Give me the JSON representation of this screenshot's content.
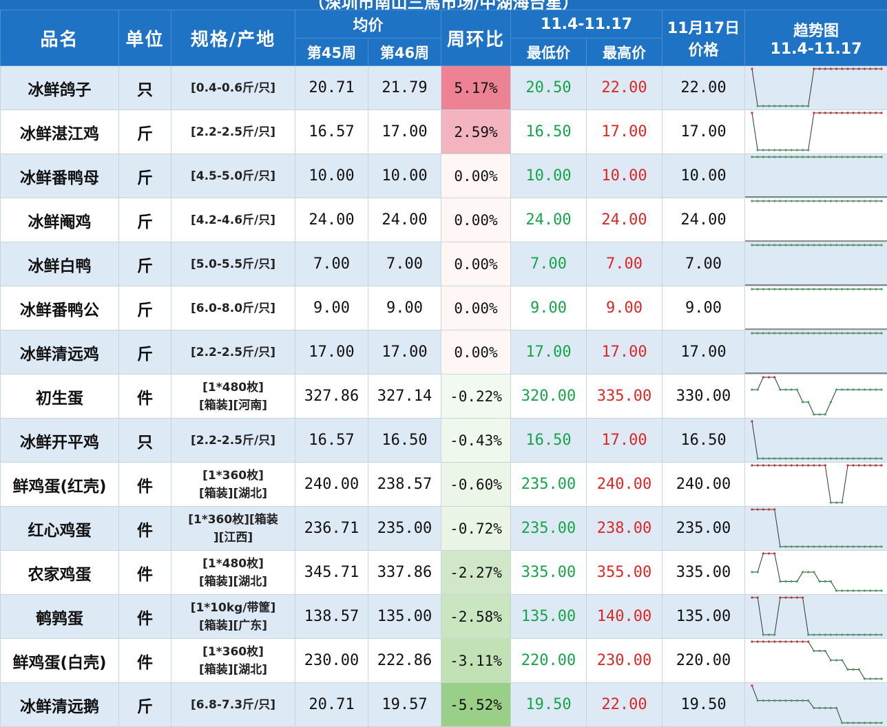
{
  "title": "（深圳市南山三馬市场/中湖海台星）",
  "header": {
    "name": "品名",
    "unit": "单位",
    "spec": "规格/产地",
    "avg": "均价",
    "week45": "第45周",
    "week46": "第46周",
    "wow": "周环比",
    "range": "11.4-11.17",
    "low": "最低价",
    "high": "最高价",
    "price_line1": "11月17日",
    "price_line2": "价格",
    "trend_line1": "趋势图",
    "trend_line2": "11.4-11.17"
  },
  "colors": {
    "header_bg": "#1f73c4",
    "low_text": "#16a34a",
    "high_text": "#dc2626",
    "positive_cell": "#f4b6bf",
    "negative_cell": "#b9dfae"
  },
  "rows": [
    {
      "name": "冰鲜鸽子",
      "unit": "只",
      "spec_l1": "[0.4-0.6斤/只]",
      "spec_l2": "",
      "w45": "20.71",
      "w46": "21.79",
      "pct": "5.17%",
      "pct_value": 5.17,
      "low": "20.50",
      "high": "22.00",
      "price": "22.00",
      "trend": [
        22,
        20.5,
        20.5,
        20.5,
        20.5,
        20.5,
        20.5,
        20.5,
        20.5,
        20.5,
        20.5,
        22,
        22,
        22,
        22,
        22,
        22,
        22,
        22,
        22,
        22,
        22,
        22,
        22
      ]
    },
    {
      "name": "冰鲜湛江鸡",
      "unit": "斤",
      "spec_l1": "[2.2-2.5斤/只]",
      "spec_l2": "",
      "w45": "16.57",
      "w46": "17.00",
      "pct": "2.59%",
      "pct_value": 2.59,
      "low": "16.50",
      "high": "17.00",
      "price": "17.00",
      "trend": [
        17,
        16.5,
        16.5,
        16.5,
        16.5,
        16.5,
        16.5,
        16.5,
        16.5,
        16.5,
        16.5,
        17,
        17,
        17,
        17,
        17,
        17,
        17,
        17,
        17,
        17,
        17,
        17,
        17
      ]
    },
    {
      "name": "冰鲜番鸭母",
      "unit": "斤",
      "spec_l1": "[4.5-5.0斤/只]",
      "spec_l2": "",
      "w45": "10.00",
      "w46": "10.00",
      "pct": "0.00%",
      "pct_value": 0,
      "low": "10.00",
      "high": "10.00",
      "price": "10.00",
      "trend": [
        10,
        10,
        10,
        10,
        10,
        10,
        10,
        10,
        10,
        10,
        10,
        10,
        10,
        10,
        10,
        10,
        10,
        10,
        10,
        10,
        10,
        10,
        10,
        10
      ]
    },
    {
      "name": "冰鲜阉鸡",
      "unit": "斤",
      "spec_l1": "[4.2-4.6斤/只]",
      "spec_l2": "",
      "w45": "24.00",
      "w46": "24.00",
      "pct": "0.00%",
      "pct_value": 0,
      "low": "24.00",
      "high": "24.00",
      "price": "24.00",
      "trend": [
        24,
        24,
        24,
        24,
        24,
        24,
        24,
        24,
        24,
        24,
        24,
        24,
        24,
        24,
        24,
        24,
        24,
        24,
        24,
        24,
        24,
        24,
        24,
        24
      ]
    },
    {
      "name": "冰鲜白鸭",
      "unit": "斤",
      "spec_l1": "[5.0-5.5斤/只]",
      "spec_l2": "",
      "w45": "7.00",
      "w46": "7.00",
      "pct": "0.00%",
      "pct_value": 0,
      "low": "7.00",
      "high": "7.00",
      "price": "7.00",
      "trend": [
        7,
        7,
        7,
        7,
        7,
        7,
        7,
        7,
        7,
        7,
        7,
        7,
        7,
        7,
        7,
        7,
        7,
        7,
        7,
        7,
        7,
        7,
        7,
        7
      ]
    },
    {
      "name": "冰鲜番鸭公",
      "unit": "斤",
      "spec_l1": "[6.0-8.0斤/只]",
      "spec_l2": "",
      "w45": "9.00",
      "w46": "9.00",
      "pct": "0.00%",
      "pct_value": 0,
      "low": "9.00",
      "high": "9.00",
      "price": "9.00",
      "trend": [
        9,
        9,
        9,
        9,
        9,
        9,
        9,
        9,
        9,
        9,
        9,
        9,
        9,
        9,
        9,
        9,
        9,
        9,
        9,
        9,
        9,
        9,
        9,
        9
      ]
    },
    {
      "name": "冰鲜清远鸡",
      "unit": "斤",
      "spec_l1": "[2.2-2.5斤/只]",
      "spec_l2": "",
      "w45": "17.00",
      "w46": "17.00",
      "pct": "0.00%",
      "pct_value": 0,
      "low": "17.00",
      "high": "17.00",
      "price": "17.00",
      "trend": [
        17,
        17,
        17,
        17,
        17,
        17,
        17,
        17,
        17,
        17,
        17,
        17,
        17,
        17,
        17,
        17,
        17,
        17,
        17,
        17,
        17,
        17,
        17,
        17
      ]
    },
    {
      "name": "初生蛋",
      "unit": "件",
      "spec_l1": "[1*480枚]",
      "spec_l2": "[箱装][河南]",
      "w45": "327.86",
      "w46": "327.14",
      "pct": "-0.22%",
      "pct_value": -0.22,
      "low": "320.00",
      "high": "335.00",
      "price": "330.00",
      "trend": [
        330,
        330,
        335,
        335,
        335,
        330,
        330,
        330,
        330,
        325,
        325,
        320,
        320,
        320,
        325,
        330,
        330,
        330,
        330,
        330,
        330,
        330,
        330,
        330
      ]
    },
    {
      "name": "冰鲜开平鸡",
      "unit": "只",
      "spec_l1": "[2.2-2.5斤/只]",
      "spec_l2": "",
      "w45": "16.57",
      "w46": "16.50",
      "pct": "-0.43%",
      "pct_value": -0.43,
      "low": "16.50",
      "high": "17.00",
      "price": "16.50",
      "trend": [
        17,
        16.5,
        16.5,
        16.5,
        16.5,
        16.5,
        16.5,
        16.5,
        16.5,
        16.5,
        16.5,
        16.5,
        16.5,
        16.5,
        16.5,
        16.5,
        16.5,
        16.5,
        16.5,
        16.5,
        16.5,
        16.5,
        16.5,
        16.5
      ]
    },
    {
      "name": "鲜鸡蛋(红壳)",
      "unit": "件",
      "spec_l1": "[1*360枚]",
      "spec_l2": "[箱装][湖北]",
      "w45": "240.00",
      "w46": "238.57",
      "pct": "-0.60%",
      "pct_value": -0.6,
      "low": "235.00",
      "high": "240.00",
      "price": "240.00",
      "trend": [
        240,
        240,
        240,
        240,
        240,
        240,
        240,
        240,
        240,
        240,
        240,
        240,
        240,
        240,
        235,
        235,
        235,
        240,
        240,
        240,
        240,
        240,
        240,
        240
      ]
    },
    {
      "name": "红心鸡蛋",
      "unit": "件",
      "spec_l1": "[1*360枚][箱装",
      "spec_l2": "][江西]",
      "w45": "236.71",
      "w46": "235.00",
      "pct": "-0.72%",
      "pct_value": -0.72,
      "low": "235.00",
      "high": "238.00",
      "price": "235.00",
      "trend": [
        238,
        238,
        238,
        238,
        238,
        235,
        235,
        235,
        235,
        235,
        235,
        235,
        235,
        235,
        235,
        235,
        235,
        235,
        235,
        235,
        235,
        235,
        235,
        235
      ]
    },
    {
      "name": "农家鸡蛋",
      "unit": "件",
      "spec_l1": "[1*480枚]",
      "spec_l2": "[箱装][湖北]",
      "w45": "345.71",
      "w46": "337.86",
      "pct": "-2.27%",
      "pct_value": -2.27,
      "low": "335.00",
      "high": "355.00",
      "price": "335.00",
      "trend": [
        345,
        345,
        355,
        355,
        355,
        340,
        340,
        340,
        340,
        345,
        345,
        345,
        340,
        340,
        340,
        335,
        335,
        335,
        335,
        335,
        335,
        335,
        335,
        335
      ]
    },
    {
      "name": "鹌鹑蛋",
      "unit": "件",
      "spec_l1": "[1*10kg/带筐]",
      "spec_l2": "[箱装][广东]",
      "w45": "138.57",
      "w46": "135.00",
      "pct": "-2.58%",
      "pct_value": -2.58,
      "low": "135.00",
      "high": "140.00",
      "price": "135.00",
      "trend": [
        140,
        140,
        135,
        135,
        135,
        140,
        140,
        140,
        140,
        140,
        135,
        135,
        135,
        135,
        135,
        135,
        135,
        135,
        135,
        135,
        135,
        135,
        135,
        135
      ]
    },
    {
      "name": "鲜鸡蛋(白壳)",
      "unit": "件",
      "spec_l1": "[1*360枚]",
      "spec_l2": "[箱装][湖北]",
      "w45": "230.00",
      "w46": "222.86",
      "pct": "-3.11%",
      "pct_value": -3.11,
      "low": "220.00",
      "high": "230.00",
      "price": "220.00",
      "trend": [
        230,
        230,
        230,
        230,
        230,
        230,
        230,
        230,
        230,
        230,
        230,
        227.5,
        227.5,
        227.5,
        225,
        225,
        225,
        222.5,
        222.5,
        222.5,
        220,
        220,
        220,
        220
      ]
    },
    {
      "name": "冰鲜清远鹅",
      "unit": "斤",
      "spec_l1": "[6.8-7.3斤/只]",
      "spec_l2": "",
      "w45": "20.71",
      "w46": "19.57",
      "pct": "-5.52%",
      "pct_value": -5.52,
      "low": "19.50",
      "high": "22.00",
      "price": "19.50",
      "trend": [
        22,
        21,
        21,
        21,
        21,
        21,
        21,
        21,
        21,
        21,
        21,
        20.5,
        20.5,
        20.5,
        20.5,
        20.5,
        19.5,
        19.5,
        19.5,
        19.5,
        19.5,
        19.5,
        19.5,
        19.5
      ]
    }
  ]
}
